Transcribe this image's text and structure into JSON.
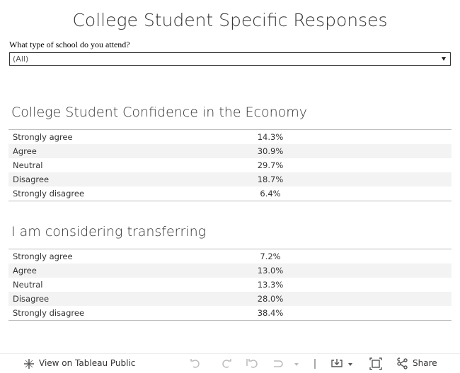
{
  "header": {
    "title": "College Student Specific Responses"
  },
  "filter": {
    "label": "What type of school do you attend?",
    "value": "(All)"
  },
  "tables": [
    {
      "title": "College Student Confidence in the Economy",
      "rows": [
        [
          "Strongly agree",
          "14.3%"
        ],
        [
          "Agree",
          "30.9%"
        ],
        [
          "Neutral",
          "29.7%"
        ],
        [
          "Disagree",
          "18.7%"
        ],
        [
          "Strongly disagree",
          "6.4%"
        ]
      ]
    },
    {
      "title": "I am considering transferring",
      "rows": [
        [
          "Strongly agree",
          "7.2%"
        ],
        [
          "Agree",
          "13.0%"
        ],
        [
          "Neutral",
          "13.3%"
        ],
        [
          "Disagree",
          "28.0%"
        ],
        [
          "Strongly disagree",
          "38.4%"
        ]
      ]
    }
  ],
  "toolbar": {
    "view": "View on Tableau Public",
    "share": "Share"
  }
}
